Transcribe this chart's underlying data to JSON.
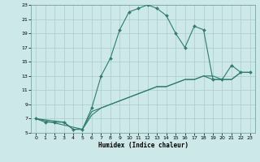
{
  "xlabel": "Humidex (Indice chaleur)",
  "bg_color": "#cce8e8",
  "grid_color": "#aacccc",
  "line_color": "#2e7d6e",
  "xlim": [
    -0.5,
    23.5
  ],
  "ylim": [
    5,
    23
  ],
  "xticks": [
    0,
    1,
    2,
    3,
    4,
    5,
    6,
    7,
    8,
    9,
    10,
    11,
    12,
    13,
    14,
    15,
    16,
    17,
    18,
    19,
    20,
    21,
    22,
    23
  ],
  "yticks": [
    5,
    7,
    9,
    11,
    13,
    15,
    17,
    19,
    21,
    23
  ],
  "line1_x": [
    0,
    1,
    2,
    3,
    4,
    5,
    6,
    7,
    8,
    9,
    10,
    11,
    12,
    13,
    14,
    15,
    16,
    17,
    18,
    19,
    20,
    21,
    22,
    23
  ],
  "line1_y": [
    7,
    6.5,
    6.5,
    6.5,
    5.5,
    5.5,
    8.5,
    13,
    15.5,
    19.5,
    22,
    22.5,
    23,
    22.5,
    21.5,
    19,
    17,
    20,
    19.5,
    12.5,
    12.5,
    14.5,
    13.5,
    13.5
  ],
  "line2_x": [
    0,
    3,
    4,
    5,
    6,
    7,
    8,
    9,
    10,
    11,
    12,
    13,
    14,
    15,
    16,
    17,
    18,
    19,
    20,
    21,
    22,
    23
  ],
  "line2_y": [
    7,
    6.5,
    5.5,
    5.5,
    8,
    8.5,
    9,
    9.5,
    10,
    10.5,
    11,
    11.5,
    11.5,
    12,
    12.5,
    12.5,
    13,
    13,
    12.5,
    12.5,
    13.5,
    13.5
  ],
  "line3_x": [
    0,
    5,
    6,
    7,
    8,
    9,
    10,
    11,
    12,
    13,
    14,
    15,
    16,
    17,
    18,
    19,
    20,
    21,
    22,
    23
  ],
  "line3_y": [
    7,
    5.5,
    7.5,
    8.5,
    9,
    9.5,
    10,
    10.5,
    11,
    11.5,
    11.5,
    12,
    12.5,
    12.5,
    13,
    12.5,
    12.5,
    12.5,
    13.5,
    13.5
  ]
}
